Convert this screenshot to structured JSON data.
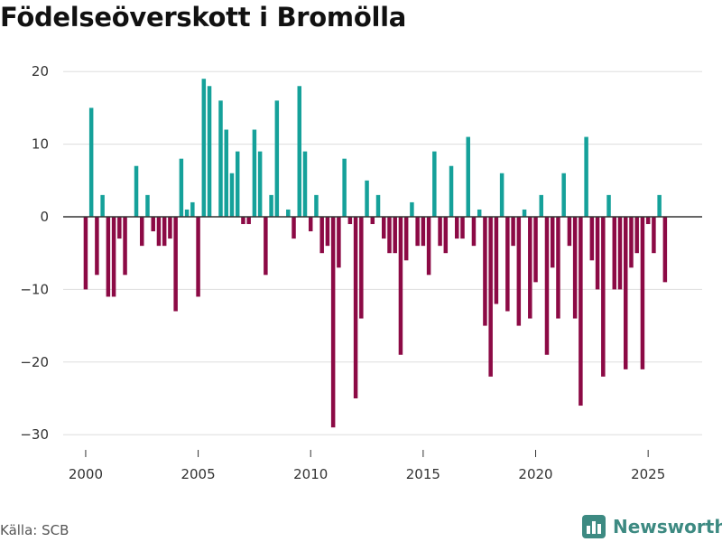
{
  "title": "Födelseöverskott i Bromölla",
  "source": "Källa: SCB",
  "brand": {
    "name": "Newsworthy",
    "icon": "bar-chart-logo-icon",
    "color": "#3d8a82"
  },
  "colors": {
    "positive": "#15a19a",
    "negative": "#8c0a45",
    "grid": "#dddddd",
    "zero": "#333333"
  },
  "chart_data": {
    "type": "bar",
    "title": "Födelseöverskott i Bromölla",
    "xlabel": "",
    "ylabel": "",
    "grid": true,
    "legend": "none",
    "ylim": [
      -35,
      22
    ],
    "xlim": [
      1999.0,
      2027.4
    ],
    "yticks": [
      20,
      10,
      0,
      -10,
      -20,
      -30
    ],
    "ytick_labels": [
      "20",
      "10",
      "0",
      "−10",
      "−20",
      "−30"
    ],
    "xticks": [
      2000,
      2005,
      2010,
      2015,
      2020,
      2025
    ],
    "xtick_labels": [
      "2000",
      "2005",
      "2010",
      "2015",
      "2020",
      "2025"
    ],
    "frequency": "quarterly",
    "start": "2000-Q1",
    "values": [
      -10,
      15,
      -8,
      3,
      -11,
      -11,
      -3,
      -8,
      0,
      7,
      -4,
      3,
      -2,
      -4,
      -4,
      -3,
      -13,
      8,
      1,
      2,
      -11,
      19,
      18,
      0,
      16,
      12,
      6,
      9,
      -1,
      -1,
      12,
      9,
      -8,
      3,
      16,
      0,
      1,
      -3,
      18,
      9,
      -2,
      3,
      -5,
      -4,
      -29,
      -7,
      8,
      -1,
      -25,
      -14,
      5,
      -1,
      3,
      -3,
      -5,
      -5,
      -19,
      -6,
      2,
      -4,
      -4,
      -8,
      9,
      -4,
      -5,
      7,
      -3,
      -3,
      11,
      -4,
      1,
      -15,
      -22,
      -12,
      6,
      -13,
      -4,
      -15,
      1,
      -14,
      -9,
      3,
      -19,
      -7,
      -14,
      6,
      -4,
      -14,
      -26,
      11,
      -6,
      -10,
      -22,
      3,
      -10,
      -10,
      -21,
      -7,
      -5,
      -21,
      -1,
      -5,
      3,
      -9
    ]
  }
}
